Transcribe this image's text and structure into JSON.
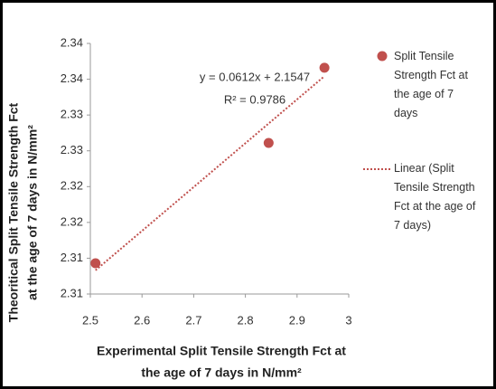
{
  "chart_data": {
    "type": "scatter",
    "x_label": [
      "Experimental Split Tensile Strength Fct at",
      "the age of 7 days in N/mm²"
    ],
    "y_label": [
      "Theoritical Split Tensile Strength Fct",
      "at the age of 7 days in N/mm²"
    ],
    "series": [
      {
        "name": "Split Tensile Strength Fct at the age of 7 days",
        "color": "#c0504d",
        "x": [
          2.51,
          2.845,
          2.953
        ],
        "values": [
          2.3093,
          2.3261,
          2.3366
        ]
      }
    ],
    "trendline": {
      "name": "Linear (Split Tensile Strength Fct at the age of 7 days)",
      "color": "#c0504d",
      "slope": 0.0612,
      "intercept": 2.1547,
      "equation": "y = 0.0612x + 2.1547",
      "r_squared_label": "R² = 0.9786"
    },
    "xlim": [
      2.5,
      3
    ],
    "xticks": [
      2.5,
      2.6,
      2.7,
      2.8,
      2.9,
      3
    ],
    "ylim": [
      2.305,
      2.34
    ],
    "yticks": [
      {
        "value": 2.305,
        "label": "2.31"
      },
      2.31,
      {
        "value": 2.315,
        "label": "2.32"
      },
      2.32,
      {
        "value": 2.325,
        "label": "2.33"
      },
      2.33,
      {
        "value": 2.335,
        "label": "2.34"
      },
      2.34
    ],
    "legend": "right"
  }
}
